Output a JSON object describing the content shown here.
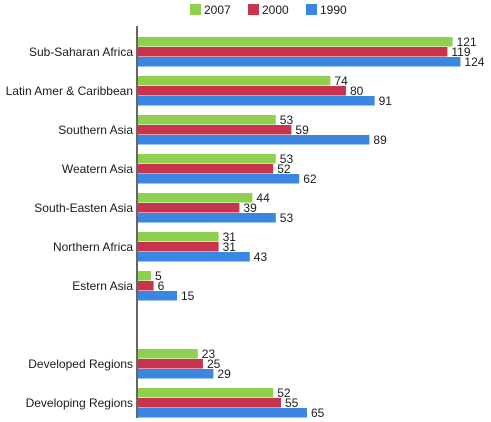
{
  "chart_data": {
    "type": "bar",
    "orientation": "horizontal",
    "title": "",
    "xlabel": "",
    "ylabel": "",
    "legend_position": "top-right",
    "grid": false,
    "xlim": [
      0,
      130
    ],
    "categories": [
      "Sub-Saharan Africa",
      "Latin Amer & Caribbean",
      "Southern Asia",
      "Weatern Asia",
      "South-Easten Asia",
      "Northern Africa",
      "Estern Asia",
      "",
      "Developed Regions",
      "Developing Regions"
    ],
    "series": [
      {
        "name": "2007",
        "color": "#8fd14f",
        "values": [
          121,
          74,
          53,
          53,
          44,
          31,
          5,
          null,
          23,
          52
        ]
      },
      {
        "name": "2000",
        "color": "#c8344e",
        "values": [
          119,
          80,
          59,
          52,
          39,
          31,
          6,
          null,
          25,
          55
        ]
      },
      {
        "name": "1990",
        "color": "#3a86e0",
        "values": [
          124,
          91,
          89,
          62,
          53,
          43,
          15,
          null,
          29,
          65
        ]
      }
    ]
  }
}
